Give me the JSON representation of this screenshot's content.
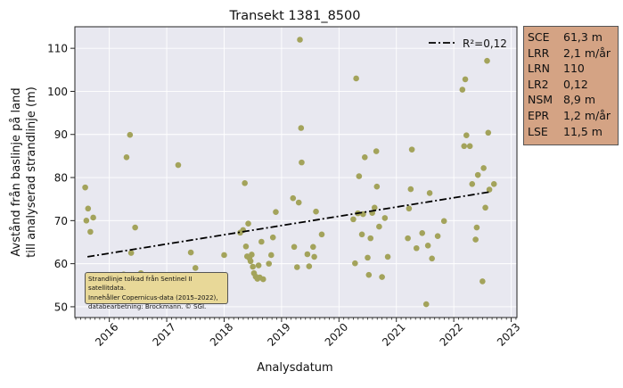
{
  "chart_data": {
    "type": "scatter",
    "title": "Transekt 1381_8500",
    "xlabel": "Analysdatum",
    "ylabel_lines": [
      "Avstånd från baslinje på land",
      "till analyserad strandlinje (m)"
    ],
    "x_ticks": [
      "2016",
      "2017",
      "2018",
      "2019",
      "2020",
      "2021",
      "2022",
      "2023"
    ],
    "y_ticks": [
      50,
      60,
      70,
      80,
      90,
      100,
      110
    ],
    "xlim": [
      2015.4,
      2023.1
    ],
    "ylim": [
      47.5,
      115
    ],
    "grid": true,
    "legend": {
      "entries": [
        "R²=0,12"
      ],
      "position": "top-right"
    },
    "series": [
      {
        "marker_color": "#a3a35b",
        "points": [
          [
            2015.58,
            77.7
          ],
          [
            2015.6,
            70.0
          ],
          [
            2015.63,
            72.8
          ],
          [
            2015.67,
            67.4
          ],
          [
            2015.72,
            70.7
          ],
          [
            2016.3,
            84.7
          ],
          [
            2016.36,
            89.9
          ],
          [
            2016.38,
            62.5
          ],
          [
            2016.45,
            68.4
          ],
          [
            2016.25,
            57.5
          ],
          [
            2016.3,
            56.8
          ],
          [
            2016.4,
            55.6
          ],
          [
            2016.5,
            56.5
          ],
          [
            2016.55,
            57.8
          ],
          [
            2017.2,
            82.9
          ],
          [
            2017.42,
            62.6
          ],
          [
            2017.5,
            59.0
          ],
          [
            2018.0,
            62.0
          ],
          [
            2018.28,
            67.2
          ],
          [
            2018.33,
            67.8
          ],
          [
            2018.36,
            78.7
          ],
          [
            2018.38,
            64.0
          ],
          [
            2018.4,
            61.7
          ],
          [
            2018.42,
            69.3
          ],
          [
            2018.44,
            61.3
          ],
          [
            2018.46,
            60.6
          ],
          [
            2018.48,
            62.1
          ],
          [
            2018.5,
            59.3
          ],
          [
            2018.52,
            57.8
          ],
          [
            2018.55,
            57.0
          ],
          [
            2018.58,
            56.5
          ],
          [
            2018.6,
            59.6
          ],
          [
            2018.62,
            56.8
          ],
          [
            2018.65,
            65.1
          ],
          [
            2018.68,
            56.4
          ],
          [
            2018.78,
            60.0
          ],
          [
            2018.82,
            62.0
          ],
          [
            2018.85,
            66.1
          ],
          [
            2018.9,
            72.0
          ],
          [
            2019.2,
            75.2
          ],
          [
            2019.22,
            63.9
          ],
          [
            2019.27,
            59.2
          ],
          [
            2019.3,
            74.2
          ],
          [
            2019.32,
            112.0
          ],
          [
            2019.34,
            91.5
          ],
          [
            2019.35,
            83.5
          ],
          [
            2019.45,
            62.2
          ],
          [
            2019.48,
            59.4
          ],
          [
            2019.55,
            63.9
          ],
          [
            2019.57,
            61.6
          ],
          [
            2019.6,
            72.1
          ],
          [
            2019.7,
            66.8
          ],
          [
            2020.25,
            70.3
          ],
          [
            2020.28,
            60.1
          ],
          [
            2020.3,
            103.0
          ],
          [
            2020.33,
            71.7
          ],
          [
            2020.35,
            80.3
          ],
          [
            2020.4,
            66.8
          ],
          [
            2020.42,
            71.5
          ],
          [
            2020.45,
            84.7
          ],
          [
            2020.5,
            61.4
          ],
          [
            2020.52,
            57.4
          ],
          [
            2020.55,
            65.9
          ],
          [
            2020.58,
            71.8
          ],
          [
            2020.62,
            73.0
          ],
          [
            2020.65,
            86.1
          ],
          [
            2020.66,
            77.9
          ],
          [
            2020.7,
            68.6
          ],
          [
            2020.75,
            56.9
          ],
          [
            2020.8,
            70.6
          ],
          [
            2020.85,
            61.6
          ],
          [
            2021.2,
            65.9
          ],
          [
            2021.22,
            72.8
          ],
          [
            2021.25,
            77.3
          ],
          [
            2021.27,
            86.5
          ],
          [
            2021.35,
            63.6
          ],
          [
            2021.45,
            67.1
          ],
          [
            2021.52,
            50.6
          ],
          [
            2021.55,
            64.2
          ],
          [
            2021.58,
            76.4
          ],
          [
            2021.62,
            61.2
          ],
          [
            2021.72,
            66.4
          ],
          [
            2021.83,
            69.9
          ],
          [
            2022.15,
            100.4
          ],
          [
            2022.18,
            87.3
          ],
          [
            2022.2,
            102.8
          ],
          [
            2022.22,
            89.8
          ],
          [
            2022.28,
            87.3
          ],
          [
            2022.32,
            78.5
          ],
          [
            2022.38,
            65.6
          ],
          [
            2022.4,
            68.4
          ],
          [
            2022.42,
            80.6
          ],
          [
            2022.5,
            55.9
          ],
          [
            2022.52,
            82.2
          ],
          [
            2022.55,
            73.0
          ],
          [
            2022.58,
            107.1
          ],
          [
            2022.6,
            90.4
          ],
          [
            2022.62,
            77.2
          ],
          [
            2022.7,
            78.5
          ]
        ]
      }
    ],
    "trend_line": {
      "name": "R²=0,12",
      "x": [
        2015.62,
        2022.65
      ],
      "y": [
        61.6,
        76.7
      ],
      "style": "dash-dot",
      "color": "#000000"
    }
  },
  "stats_box": {
    "rows": [
      {
        "key": "SCE",
        "value": "61,3 m"
      },
      {
        "key": "LRR",
        "value": "2,1 m/år"
      },
      {
        "key": "LRN",
        "value": "110"
      },
      {
        "key": "LR2",
        "value": "0,12"
      },
      {
        "key": "NSM",
        "value": "8,9 m"
      },
      {
        "key": "EPR",
        "value": "1,2 m/år"
      },
      {
        "key": "LSE",
        "value": "11,5 m"
      }
    ]
  },
  "credit_text": "Strandlinje tolkad från Sentinel II satellitdata.\nInnehåller Copernicus-data (2015–2022),\ndatabearbetning: Brockmann. © SGI.",
  "colors": {
    "plot_background": "#e8e8f0",
    "grid": "#ffffff",
    "marker": "#a3a35b",
    "stats_box_bg": "#d4a384",
    "credit_box_bg": "#e8d898"
  }
}
